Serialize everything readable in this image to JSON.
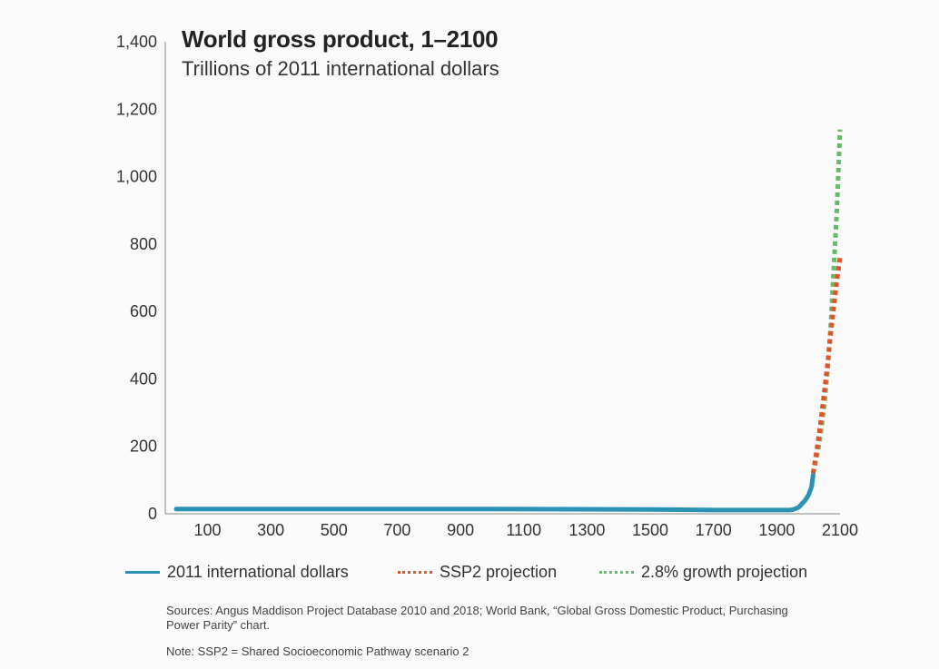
{
  "chart_data": {
    "type": "line",
    "title": "World gross product, 1–2100",
    "subtitle": "Trillions of 2011 international dollars",
    "xlabel": "",
    "ylabel": "",
    "xlim": [
      1,
      2100
    ],
    "ylim": [
      0,
      1400
    ],
    "y_ticks": [
      "0",
      "200",
      "400",
      "600",
      "800",
      "1,000",
      "1,200",
      "1,400"
    ],
    "y_tick_values": [
      0,
      200,
      400,
      600,
      800,
      1000,
      1200,
      1400
    ],
    "x_ticks": [
      "100",
      "300",
      "500",
      "700",
      "900",
      "1100",
      "1300",
      "1500",
      "1700",
      "1900",
      "2100"
    ],
    "x_tick_values": [
      100,
      300,
      500,
      700,
      900,
      1100,
      1300,
      1500,
      1700,
      1900,
      2100
    ],
    "grid": false,
    "legend_position": "bottom",
    "series": [
      {
        "name": "2011 international dollars",
        "color": "#2a93b5",
        "style": "solid",
        "x": [
          1,
          1000,
          1500,
          1600,
          1700,
          1820,
          1870,
          1900,
          1913,
          1940,
          1950,
          1960,
          1970,
          1980,
          1990,
          2000,
          2010,
          2015
        ],
        "y": [
          14,
          14,
          13,
          12,
          11,
          11,
          11,
          11,
          11,
          11,
          12,
          15,
          20,
          30,
          40,
          55,
          80,
          115
        ]
      },
      {
        "name": "SSP2 projection",
        "color": "#e0542a",
        "style": "dotted",
        "x": [
          2015,
          2020,
          2030,
          2040,
          2050,
          2060,
          2070,
          2080,
          2090,
          2100
        ],
        "y": [
          120,
          150,
          210,
          280,
          360,
          440,
          530,
          610,
          690,
          760
        ]
      },
      {
        "name": "2.8% growth projection",
        "color": "#69b96c",
        "style": "dotted",
        "x": [
          2015,
          2020,
          2030,
          2040,
          2050,
          2060,
          2070,
          2080,
          2090,
          2100
        ],
        "y": [
          120,
          140,
          185,
          245,
          320,
          420,
          550,
          720,
          900,
          1140
        ]
      }
    ]
  },
  "sources": "Sources: Angus Maddison Project Database 2010 and 2018; World Bank, “Global Gross Domestic Product, Purchasing Power Parity” chart.",
  "note": "Note: SSP2 = Shared Socioeconomic Pathway scenario 2"
}
